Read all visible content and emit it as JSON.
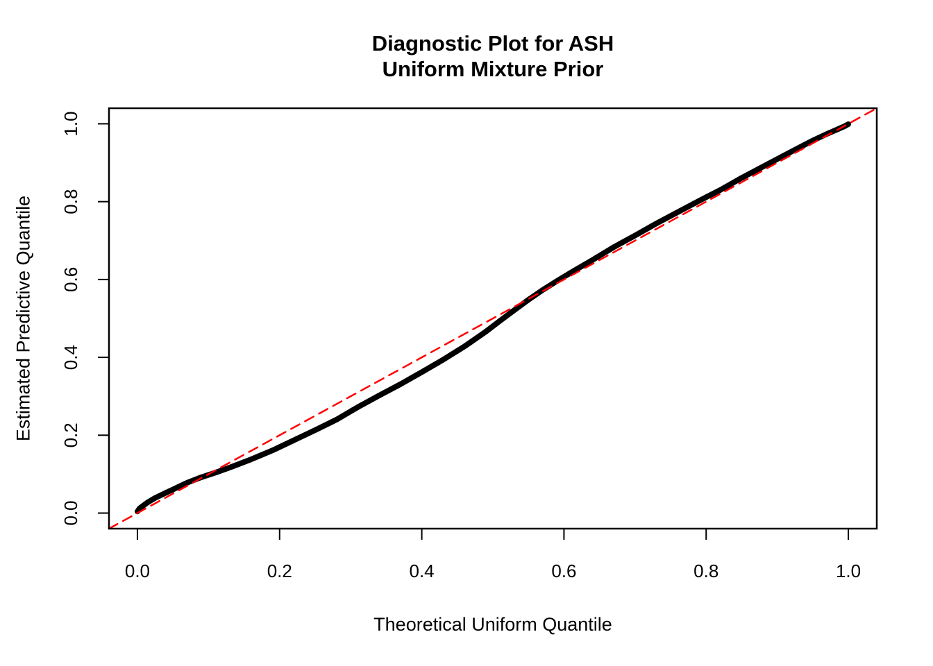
{
  "figure": {
    "background": "#ffffff",
    "axis_color": "#000000",
    "text_color": "#000000"
  },
  "chart_data": {
    "type": "line",
    "title": "Diagnostic Plot for ASH Uniform Mixture Prior",
    "title_lines": [
      "Diagnostic Plot for ASH",
      "Uniform Mixture Prior"
    ],
    "xlabel": "Theoretical Uniform Quantile",
    "ylabel": "Estimated Predictive Quantile",
    "xlim": [
      -0.04,
      1.04
    ],
    "ylim": [
      -0.04,
      1.04
    ],
    "x_ticks": [
      0.0,
      0.2,
      0.4,
      0.6,
      0.8,
      1.0
    ],
    "y_ticks": [
      0.0,
      0.2,
      0.4,
      0.6,
      0.8,
      1.0
    ],
    "tick_label_format_decimals": 1,
    "grid": false,
    "legend": null,
    "series": [
      {
        "name": "estimated-predictive-quantiles",
        "kind": "curve",
        "color": "#000000",
        "line_width": 8,
        "dash": false,
        "points": [
          [
            0.0,
            0.004
          ],
          [
            0.003,
            0.012
          ],
          [
            0.008,
            0.019
          ],
          [
            0.015,
            0.028
          ],
          [
            0.025,
            0.039
          ],
          [
            0.04,
            0.052
          ],
          [
            0.055,
            0.065
          ],
          [
            0.07,
            0.078
          ],
          [
            0.09,
            0.092
          ],
          [
            0.11,
            0.104
          ],
          [
            0.13,
            0.117
          ],
          [
            0.16,
            0.138
          ],
          [
            0.19,
            0.161
          ],
          [
            0.22,
            0.187
          ],
          [
            0.25,
            0.213
          ],
          [
            0.28,
            0.24
          ],
          [
            0.31,
            0.272
          ],
          [
            0.34,
            0.302
          ],
          [
            0.37,
            0.331
          ],
          [
            0.4,
            0.362
          ],
          [
            0.43,
            0.394
          ],
          [
            0.46,
            0.428
          ],
          [
            0.49,
            0.466
          ],
          [
            0.51,
            0.494
          ],
          [
            0.53,
            0.521
          ],
          [
            0.55,
            0.548
          ],
          [
            0.57,
            0.573
          ],
          [
            0.59,
            0.596
          ],
          [
            0.61,
            0.618
          ],
          [
            0.64,
            0.65
          ],
          [
            0.67,
            0.683
          ],
          [
            0.7,
            0.713
          ],
          [
            0.73,
            0.744
          ],
          [
            0.76,
            0.773
          ],
          [
            0.79,
            0.802
          ],
          [
            0.82,
            0.83
          ],
          [
            0.85,
            0.861
          ],
          [
            0.88,
            0.89
          ],
          [
            0.91,
            0.919
          ],
          [
            0.93,
            0.938
          ],
          [
            0.95,
            0.957
          ],
          [
            0.97,
            0.974
          ],
          [
            0.985,
            0.986
          ],
          [
            0.995,
            0.994
          ],
          [
            1.0,
            0.999
          ]
        ]
      },
      {
        "name": "identity-reference-line",
        "kind": "straight",
        "color": "#FF0000",
        "line_width": 2.5,
        "dash": true,
        "dash_pattern": [
          14,
          9
        ],
        "points": [
          [
            -0.04,
            -0.04
          ],
          [
            1.04,
            1.04
          ]
        ]
      }
    ]
  }
}
